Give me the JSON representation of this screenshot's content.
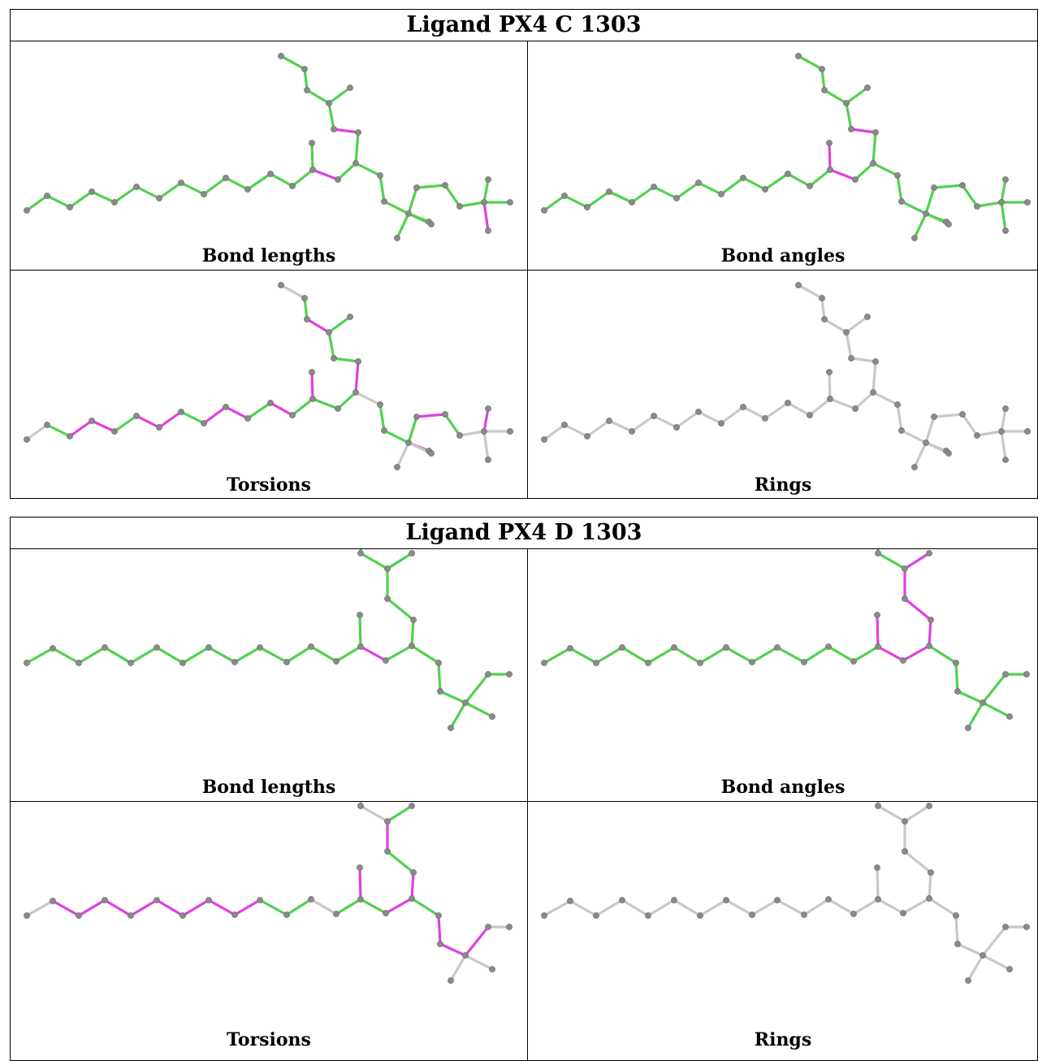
{
  "colors": {
    "ok_bond": "#4fd24f",
    "outlier_bond": "#e040e0",
    "neutral_bond": "#c8c8c8",
    "atom": "#8a8a8a"
  },
  "panel_captions": [
    "Bond lengths",
    "Bond angles",
    "Torsions",
    "Rings"
  ],
  "ligands": [
    {
      "title": "Ligand PX4 C 1303"
    },
    {
      "title": "Ligand PX4 D 1303"
    }
  ]
}
